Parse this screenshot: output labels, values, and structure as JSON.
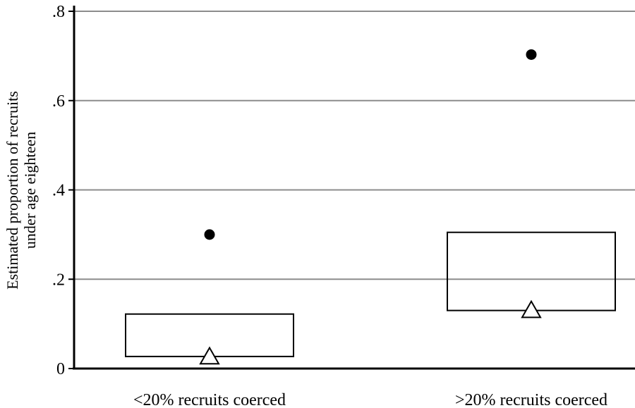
{
  "chart_data": {
    "type": "box",
    "ylabel_lines": [
      "Estimated proportion of recruits",
      "under age eighteen"
    ],
    "ylim": [
      0,
      0.8
    ],
    "yticks": [
      {
        "value": 0,
        "label": "0"
      },
      {
        "value": 0.2,
        "label": ".2"
      },
      {
        "value": 0.4,
        "label": ".4"
      },
      {
        "value": 0.6,
        "label": ".6"
      },
      {
        "value": 0.8,
        "label": ".8"
      }
    ],
    "gridlines": [
      0.2,
      0.4,
      0.6,
      0.8
    ],
    "categories": [
      "<20% recruits coerced",
      ">20% recruits coerced"
    ],
    "boxes": [
      {
        "category": "<20% recruits coerced",
        "low": 0.027,
        "high": 0.122,
        "triangle": 0.026,
        "dot": 0.3
      },
      {
        "category": ">20% recruits coerced",
        "low": 0.13,
        "high": 0.305,
        "triangle": 0.13,
        "dot": 0.703
      }
    ],
    "colors": {
      "grid": "#8c8c8c",
      "axis": "#000000",
      "dot": "#000000",
      "box_stroke": "#000000"
    }
  }
}
